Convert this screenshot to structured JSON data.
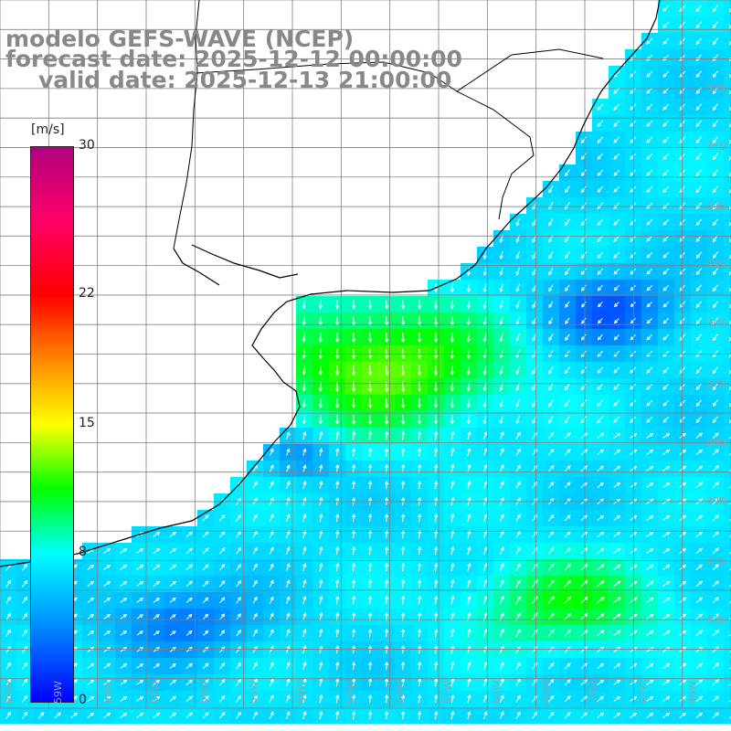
{
  "title": {
    "line1": "modelo GEFS-WAVE (NCEP)",
    "line2": "forecast date: 2025-12-12 00:00:00",
    "line3": "valid date: 2025-12-13 21:00:00"
  },
  "variable": "wind speed",
  "colorbar": {
    "unit": "[m/s]",
    "min": 0,
    "max": 30,
    "ticks": [
      {
        "label": "30",
        "value": 30
      },
      {
        "label": "22",
        "value": 22
      },
      {
        "label": "15",
        "value": 15
      },
      {
        "label": "8",
        "value": 8
      },
      {
        "label": "0",
        "value": 0
      }
    ],
    "stops": [
      {
        "value": 0,
        "color": "#0000ff"
      },
      {
        "value": 4,
        "color": "#0088ff"
      },
      {
        "value": 8,
        "color": "#00ffff"
      },
      {
        "value": 11.5,
        "color": "#00ff00"
      },
      {
        "value": 15,
        "color": "#ffff00"
      },
      {
        "value": 18.5,
        "color": "#ff8800"
      },
      {
        "value": 22,
        "color": "#ff0000"
      },
      {
        "value": 26,
        "color": "#ff0066"
      },
      {
        "value": 30,
        "color": "#b00080"
      }
    ]
  },
  "map": {
    "lon_min": -60,
    "lon_max": -45,
    "lat_min": -42.5,
    "lat_max": -30.5,
    "lat_labels": [
      "32S",
      "33S",
      "34S",
      "35S",
      "36S",
      "37S",
      "38S",
      "39S",
      "40S",
      "41S"
    ],
    "lon_labels": [
      "60W",
      "59W",
      "58W",
      "57W",
      "56W",
      "55W",
      "54W",
      "53W",
      "52W",
      "51W",
      "50W",
      "49W",
      "48W",
      "47W",
      "46W",
      "45W"
    ],
    "ocean_color_scale": "colorbar",
    "arrow_color": "#ffffff",
    "coastline_color": "#000000",
    "grid_color": "#808080"
  }
}
